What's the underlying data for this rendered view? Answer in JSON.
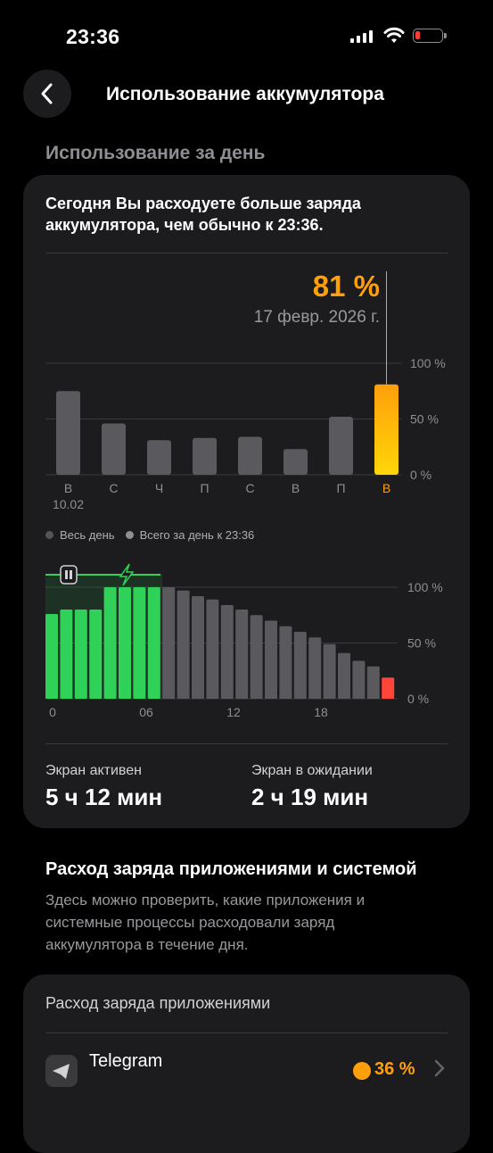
{
  "status": {
    "time": "23:36"
  },
  "header": {
    "title": "Использование аккумулятора"
  },
  "section": {
    "label": "Использование за день"
  },
  "card": {
    "description": "Сегодня Вы расходуете больше заряда аккумулятора, чем обычно к 23:36.",
    "selected_pct": "81 %",
    "selected_date": "17 февр. 2026 г.",
    "legend_all_day": "Весь день",
    "legend_total": "Всего за день к 23:36",
    "screen_active_label": "Экран активен",
    "screen_active_value": "5 ч 12 мин",
    "screen_standby_label": "Экран в ожидании",
    "screen_standby_value": "2 ч 19 мин"
  },
  "chart_data": [
    {
      "type": "bar",
      "categories": [
        "В",
        "С",
        "Ч",
        "П",
        "С",
        "В",
        "П",
        "В"
      ],
      "sub_labels": [
        "10.02",
        "",
        "",
        "",
        "",
        "",
        "",
        ""
      ],
      "values": [
        75,
        46,
        31,
        33,
        34,
        23,
        52,
        81
      ],
      "selected_index": 7,
      "ylim": [
        0,
        100
      ],
      "y_ticks": [
        "100 %",
        "50 %",
        "0 %"
      ],
      "colors": {
        "bar": "#5a5a5e",
        "selected_top": "#ff9f0a",
        "selected_bottom": "#ffd60a"
      }
    },
    {
      "type": "bar",
      "x_ticks": [
        "0",
        "06",
        "12",
        "18"
      ],
      "y_ticks": [
        "100 %",
        "50 %",
        "0 %"
      ],
      "ylim": [
        0,
        100
      ],
      "values": [
        76,
        80,
        80,
        80,
        100,
        100,
        100,
        100,
        100,
        97,
        92,
        89,
        84,
        80,
        75,
        70,
        65,
        60,
        55,
        49,
        41,
        34,
        29,
        19
      ],
      "charging": [
        true,
        true,
        true,
        true,
        true,
        true,
        true,
        true,
        false,
        false,
        false,
        false,
        false,
        false,
        false,
        false,
        false,
        false,
        false,
        false,
        false,
        false,
        false,
        false
      ],
      "colors": {
        "charging": "#30d158",
        "discharging": "#5a5a5e",
        "low": "#ff453a"
      }
    }
  ],
  "apps_section": {
    "title": "Расход заряда приложениями и системой",
    "description": "Здесь можно проверить, какие приложения и системные процессы расходовали заряд аккумулятора в течение дня.",
    "card_label": "Расход заряда приложениями",
    "apps": [
      {
        "name": "Telegram",
        "percent": "36 %"
      }
    ]
  }
}
